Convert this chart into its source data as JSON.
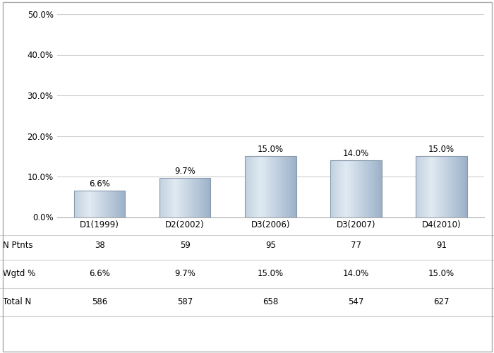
{
  "categories": [
    "D1(1999)",
    "D2(2002)",
    "D3(2006)",
    "D3(2007)",
    "D4(2010)"
  ],
  "values": [
    6.6,
    9.7,
    15.0,
    14.0,
    15.0
  ],
  "labels": [
    "6.6%",
    "9.7%",
    "15.0%",
    "14.0%",
    "15.0%"
  ],
  "n_ptnts": [
    "38",
    "59",
    "95",
    "77",
    "91"
  ],
  "wgtd_pct": [
    "6.6%",
    "9.7%",
    "15.0%",
    "14.0%",
    "15.0%"
  ],
  "total_n": [
    "586",
    "587",
    "658",
    "547",
    "627"
  ],
  "ylim": [
    0,
    50
  ],
  "yticks": [
    0,
    10,
    20,
    30,
    40,
    50
  ],
  "ytick_labels": [
    "0.0%",
    "10.0%",
    "20.0%",
    "30.0%",
    "40.0%",
    "50.0%"
  ],
  "background_color": "#ffffff",
  "grid_color": "#d0d0d0",
  "text_color": "#000000",
  "label_fontsize": 8.5,
  "tick_fontsize": 8.5,
  "table_fontsize": 8.5,
  "row_labels": [
    "N Ptnts",
    "Wgtd %",
    "Total N"
  ],
  "border_color": "#aaaaaa",
  "bar_edge_color": "#8899aa"
}
